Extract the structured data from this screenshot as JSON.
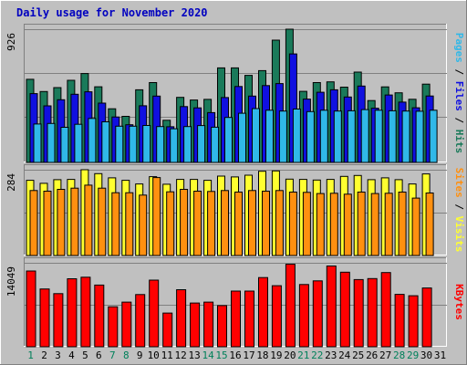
{
  "chart_data": {
    "type": "bar",
    "title": "Daily usage for November 2020",
    "categories": [
      "1",
      "2",
      "3",
      "4",
      "5",
      "6",
      "7",
      "8",
      "9",
      "10",
      "11",
      "12",
      "13",
      "14",
      "15",
      "16",
      "17",
      "18",
      "19",
      "20",
      "21",
      "22",
      "23",
      "24",
      "25",
      "26",
      "27",
      "28",
      "29",
      "30",
      "31"
    ],
    "weekend_days": [
      "1",
      "7",
      "8",
      "14",
      "15",
      "21",
      "22",
      "28",
      "29"
    ],
    "panels": [
      {
        "id": "pfh",
        "max_label": "926",
        "ymax": 926,
        "labels": [
          "Pages",
          "/",
          "Files",
          "/",
          "Hits"
        ],
        "series": [
          {
            "name": "Hits",
            "color": "#1A7A5A",
            "values": [
              578,
              493,
              520,
              571,
              618,
              526,
              373,
              320,
              505,
              555,
              293,
              452,
              434,
              438,
              657,
              657,
              605,
              638,
              850,
              926,
              494,
              555,
              560,
              523,
              628,
              430,
              525,
              484,
              439,
              544,
              0
            ]
          },
          {
            "name": "Files",
            "color": "#1010E0",
            "values": [
              478,
              393,
              436,
              474,
              491,
              412,
              316,
              262,
              394,
              461,
              248,
              388,
              379,
              346,
              451,
              528,
              461,
              534,
              548,
              754,
              440,
              488,
              505,
              455,
              531,
              377,
              469,
              419,
              380,
              462,
              0
            ]
          },
          {
            "name": "Pages",
            "color": "#30B8E8",
            "values": [
              267,
              271,
              244,
              265,
              306,
              282,
              252,
              252,
              257,
              249,
              234,
              249,
              256,
              245,
              313,
              342,
              374,
              363,
              357,
              371,
              353,
              363,
              357,
              359,
              367,
              363,
              359,
              357,
              356,
              363,
              0
            ]
          }
        ]
      },
      {
        "id": "sv",
        "max_label": "284",
        "ymax": 284,
        "labels": [
          "Sites",
          "/",
          "Visits"
        ],
        "series": [
          {
            "name": "Visits",
            "color": "#FFFF30",
            "values": [
              249,
              239,
              251,
              252,
              284,
              271,
              257,
              249,
              237,
              261,
              236,
              252,
              252,
              249,
              263,
              260,
              266,
              279,
              280,
              253,
              252,
              250,
              252,
              262,
              265,
              251,
              257,
              251,
              237,
              270,
              0
            ]
          },
          {
            "name": "Sites",
            "color": "#FF9010",
            "values": [
              215,
              213,
              219,
              223,
              233,
              223,
              208,
              208,
              200,
              258,
              211,
              219,
              213,
              212,
              215,
              210,
              215,
              213,
              215,
              210,
              209,
              205,
              206,
              203,
              210,
              205,
              206,
              210,
              190,
              207,
              0
            ]
          }
        ]
      },
      {
        "id": "kb",
        "max_label": "14049",
        "ymax": 14049,
        "labels": [
          "KBytes"
        ],
        "series": [
          {
            "name": "KBytes",
            "color": "#FF0000",
            "values": [
              12680,
              9670,
              8880,
              11370,
              11630,
              10320,
              6690,
              7470,
              8730,
              11140,
              5640,
              9540,
              7310,
              7470,
              6890,
              9310,
              9310,
              11580,
              10210,
              13810,
              10420,
              11020,
              13520,
              12480,
              11240,
              11410,
              12420,
              8770,
              8540,
              9840,
              0
            ]
          }
        ]
      }
    ]
  }
}
